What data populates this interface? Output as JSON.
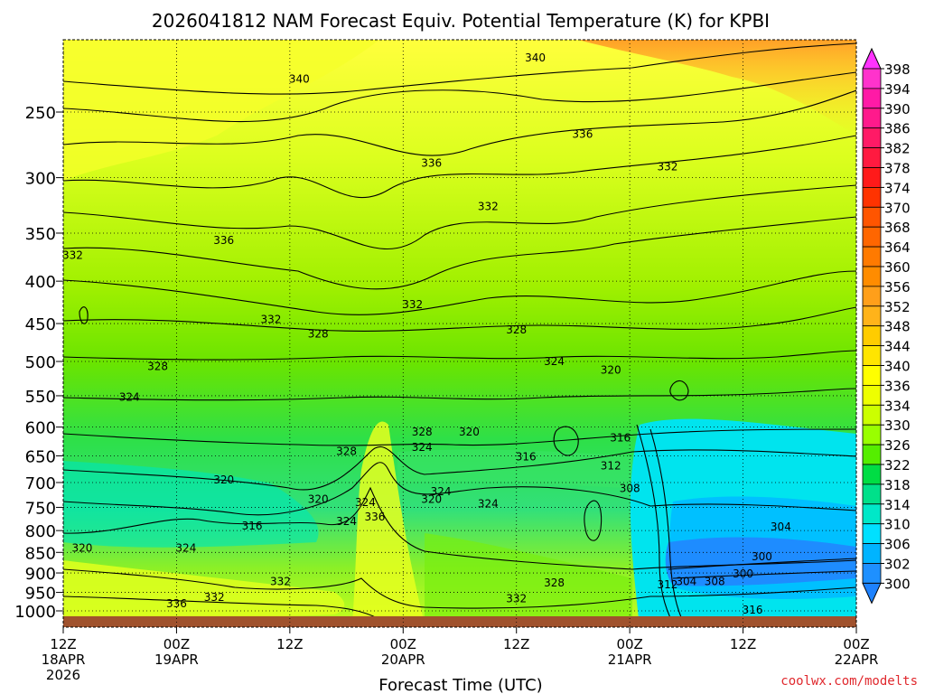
{
  "chart_data": {
    "type": "heatmap",
    "title": "2026041812 NAM Forecast Equiv. Potential Temperature (K) for KPBI",
    "xlabel": "Forecast Time (UTC)",
    "ylabel": "",
    "credit": "coolwx.com/modelts",
    "y_scale": "log",
    "ylim": [
      1000,
      200
    ],
    "x_range_hours": [
      0,
      84
    ],
    "x_ticks": [
      {
        "hour": 0,
        "line1": "12Z",
        "line2": "18APR",
        "line3": "2026"
      },
      {
        "hour": 12,
        "line1": "00Z",
        "line2": "19APR",
        "line3": ""
      },
      {
        "hour": 24,
        "line1": "12Z",
        "line2": "",
        "line3": ""
      },
      {
        "hour": 36,
        "line1": "00Z",
        "line2": "20APR",
        "line3": ""
      },
      {
        "hour": 48,
        "line1": "12Z",
        "line2": "",
        "line3": ""
      },
      {
        "hour": 60,
        "line1": "00Z",
        "line2": "21APR",
        "line3": ""
      },
      {
        "hour": 72,
        "line1": "12Z",
        "line2": "",
        "line3": ""
      },
      {
        "hour": 84,
        "line1": "00Z",
        "line2": "22APR",
        "line3": ""
      }
    ],
    "y_ticks": [
      "250",
      "300",
      "350",
      "400",
      "450",
      "500",
      "550",
      "600",
      "650",
      "700",
      "750",
      "800",
      "850",
      "900",
      "950",
      "1000"
    ],
    "y_tick_values": [
      250,
      300,
      350,
      400,
      450,
      500,
      550,
      600,
      650,
      700,
      750,
      800,
      850,
      900,
      950,
      1000
    ],
    "colorbar": {
      "labels": [
        "398",
        "394",
        "390",
        "386",
        "382",
        "378",
        "374",
        "370",
        "368",
        "364",
        "360",
        "356",
        "352",
        "348",
        "344",
        "340",
        "336",
        "334",
        "330",
        "326",
        "322",
        "318",
        "314",
        "310",
        "306",
        "302",
        "300"
      ],
      "colors": [
        "#ff33cc",
        "#ff1aa6",
        "#ff1a8c",
        "#ff1a66",
        "#ff1a40",
        "#ff1a1a",
        "#ff3300",
        "#ff5500",
        "#ff6600",
        "#ff7a00",
        "#ff8c00",
        "#ff9f1a",
        "#ffb31a",
        "#ffcc00",
        "#ffe500",
        "#ffff00",
        "#eeff00",
        "#ccff00",
        "#99ff00",
        "#55ee00",
        "#00dd44",
        "#00e08a",
        "#00e8c8",
        "#00e0ff",
        "#00b4ff",
        "#1e90ff"
      ],
      "top_arrow_color": "#ff33ff",
      "bottom_arrow_color": "#1e82ff"
    },
    "ground_color": "#a0522d",
    "contour_interval_K": 2,
    "contour_labels": [
      {
        "hour": 50,
        "p": 215,
        "v": "340"
      },
      {
        "hour": 25,
        "p": 228,
        "v": "340"
      },
      {
        "hour": 55,
        "p": 266,
        "v": "336"
      },
      {
        "hour": 39,
        "p": 288,
        "v": "336"
      },
      {
        "hour": 64,
        "p": 291,
        "v": "332"
      },
      {
        "hour": 45,
        "p": 325,
        "v": "332"
      },
      {
        "hour": 17,
        "p": 357,
        "v": "336"
      },
      {
        "hour": 1,
        "p": 372,
        "v": "332"
      },
      {
        "hour": 37,
        "p": 427,
        "v": "332"
      },
      {
        "hour": 22,
        "p": 445,
        "v": "332"
      },
      {
        "hour": 27,
        "p": 463,
        "v": "328"
      },
      {
        "hour": 48,
        "p": 458,
        "v": "328"
      },
      {
        "hour": 10,
        "p": 507,
        "v": "328"
      },
      {
        "hour": 52,
        "p": 500,
        "v": "324"
      },
      {
        "hour": 58,
        "p": 512,
        "v": "320"
      },
      {
        "hour": 7,
        "p": 552,
        "v": "324"
      },
      {
        "hour": 59,
        "p": 618,
        "v": "316"
      },
      {
        "hour": 38,
        "p": 608,
        "v": "328"
      },
      {
        "hour": 43,
        "p": 608,
        "v": "320"
      },
      {
        "hour": 38,
        "p": 635,
        "v": "324"
      },
      {
        "hour": 30,
        "p": 642,
        "v": "328"
      },
      {
        "hour": 49,
        "p": 652,
        "v": "316"
      },
      {
        "hour": 58,
        "p": 668,
        "v": "312"
      },
      {
        "hour": 17,
        "p": 695,
        "v": "320"
      },
      {
        "hour": 40,
        "p": 718,
        "v": "324"
      },
      {
        "hour": 60,
        "p": 712,
        "v": "308"
      },
      {
        "hour": 27,
        "p": 733,
        "v": "320"
      },
      {
        "hour": 39,
        "p": 733,
        "v": "320"
      },
      {
        "hour": 32,
        "p": 740,
        "v": "324"
      },
      {
        "hour": 45,
        "p": 743,
        "v": "324"
      },
      {
        "hour": 33,
        "p": 770,
        "v": "336"
      },
      {
        "hour": 30,
        "p": 780,
        "v": "324"
      },
      {
        "hour": 20,
        "p": 790,
        "v": "316"
      },
      {
        "hour": 76,
        "p": 792,
        "v": "304"
      },
      {
        "hour": 2,
        "p": 840,
        "v": "320"
      },
      {
        "hour": 13,
        "p": 840,
        "v": "324"
      },
      {
        "hour": 74,
        "p": 860,
        "v": "300"
      },
      {
        "hour": 72,
        "p": 902,
        "v": "300"
      },
      {
        "hour": 23,
        "p": 922,
        "v": "332"
      },
      {
        "hour": 52,
        "p": 925,
        "v": "328"
      },
      {
        "hour": 69,
        "p": 922,
        "v": "308"
      },
      {
        "hour": 64,
        "p": 930,
        "v": "312"
      },
      {
        "hour": 66,
        "p": 922,
        "v": "304"
      },
      {
        "hour": 16,
        "p": 963,
        "v": "332"
      },
      {
        "hour": 48,
        "p": 967,
        "v": "332"
      },
      {
        "hour": 12,
        "p": 980,
        "v": "336"
      },
      {
        "hour": 73,
        "p": 998,
        "v": "316"
      }
    ]
  }
}
